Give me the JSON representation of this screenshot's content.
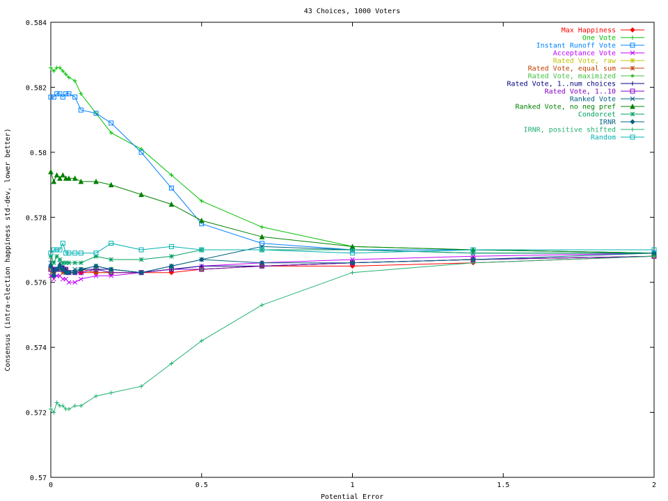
{
  "chart_data": {
    "type": "line",
    "title": "43 Choices, 1000 Voters",
    "xlabel": "Potential Error",
    "ylabel": "Consensus (intra-election happiness std-dev, lower better)",
    "xlim": [
      0,
      2
    ],
    "ylim": [
      0.57,
      0.584
    ],
    "xticks": [
      0,
      0.5,
      1,
      1.5,
      2
    ],
    "xtick_labels": [
      "0",
      "0.5",
      "1",
      "1.5",
      "2"
    ],
    "yticks": [
      0.57,
      0.572,
      0.574,
      0.576,
      0.578,
      0.58,
      0.582,
      0.584
    ],
    "ytick_labels": [
      "0.57",
      "0.572",
      "0.574",
      "0.576",
      "0.578",
      "0.58",
      "0.582",
      "0.584"
    ],
    "grid": false,
    "legend_position": "top-right",
    "x": [
      0,
      0.01,
      0.02,
      0.03,
      0.04,
      0.05,
      0.06,
      0.08,
      0.1,
      0.15,
      0.2,
      0.3,
      0.4,
      0.5,
      0.7,
      1.0,
      1.4,
      2.0
    ],
    "series": [
      {
        "name": "Max Happiness",
        "color": "#ff0000",
        "marker": "diamond",
        "values": [
          0.5764,
          0.5763,
          0.5764,
          0.5764,
          0.5764,
          0.5763,
          0.5763,
          0.5763,
          0.5763,
          0.5763,
          0.5763,
          0.5763,
          0.5763,
          0.5764,
          0.5765,
          0.5765,
          0.5766,
          0.5768
        ]
      },
      {
        "name": "One Vote",
        "color": "#00c000",
        "marker": "plus",
        "values": [
          0.5826,
          0.5825,
          0.5826,
          0.5826,
          0.5825,
          0.5824,
          0.5823,
          0.5822,
          0.5818,
          0.5812,
          0.5806,
          0.5801,
          0.5793,
          0.5785,
          0.5777,
          0.5771,
          0.577,
          0.5769
        ]
      },
      {
        "name": "Instant Runoff Vote",
        "color": "#0080ff",
        "marker": "square",
        "values": [
          0.5817,
          0.5817,
          0.5818,
          0.5818,
          0.5817,
          0.5818,
          0.5818,
          0.5817,
          0.5813,
          0.5812,
          0.5809,
          0.58,
          0.5789,
          0.5778,
          0.5772,
          0.577,
          0.577,
          0.5769
        ]
      },
      {
        "name": "Acceptance Vote",
        "color": "#c000ff",
        "marker": "x",
        "values": [
          0.5762,
          0.5761,
          0.5762,
          0.5762,
          0.5761,
          0.5761,
          0.576,
          0.576,
          0.5761,
          0.5762,
          0.5762,
          0.5763,
          0.5764,
          0.5765,
          0.5766,
          0.5767,
          0.5768,
          0.5769
        ]
      },
      {
        "name": "Rated Vote, raw",
        "color": "#c0c000",
        "marker": "star",
        "values": [
          0.5764,
          0.5764,
          0.5764,
          0.5764,
          0.5764,
          0.5764,
          0.5763,
          0.5763,
          0.5764,
          0.5764,
          0.5764,
          0.5763,
          0.5764,
          0.5764,
          0.5765,
          0.5766,
          0.5767,
          0.5768
        ]
      },
      {
        "name": "Rated Vote, equal sum",
        "color": "#c04000",
        "marker": "star",
        "values": [
          0.5764,
          0.5764,
          0.5764,
          0.5764,
          0.5763,
          0.5764,
          0.5763,
          0.5763,
          0.5764,
          0.5763,
          0.5763,
          0.5763,
          0.5764,
          0.5764,
          0.5765,
          0.5766,
          0.5767,
          0.5768
        ]
      },
      {
        "name": "Rated Vote, maximized",
        "color": "#40c040",
        "marker": "dot",
        "values": [
          0.5764,
          0.5764,
          0.5764,
          0.5764,
          0.5764,
          0.5764,
          0.5763,
          0.5763,
          0.5764,
          0.5764,
          0.5763,
          0.5763,
          0.5764,
          0.5764,
          0.5765,
          0.5766,
          0.5767,
          0.5768
        ]
      },
      {
        "name": "Rated Vote, 1..num choices",
        "color": "#000080",
        "marker": "plus",
        "values": [
          0.5765,
          0.5764,
          0.5764,
          0.5765,
          0.5765,
          0.5764,
          0.5763,
          0.5763,
          0.5764,
          0.5764,
          0.5764,
          0.5763,
          0.5764,
          0.5765,
          0.5765,
          0.5766,
          0.5767,
          0.5768
        ]
      },
      {
        "name": "Rated Vote, 1..10",
        "color": "#8000c0",
        "marker": "square",
        "values": [
          0.5764,
          0.5764,
          0.5764,
          0.5764,
          0.5764,
          0.5764,
          0.5763,
          0.5763,
          0.5763,
          0.5764,
          0.5763,
          0.5763,
          0.5764,
          0.5764,
          0.5765,
          0.5766,
          0.5767,
          0.5768
        ]
      },
      {
        "name": "Ranked Vote",
        "color": "#006080",
        "marker": "x",
        "values": [
          0.5766,
          0.5763,
          0.5764,
          0.5766,
          0.5764,
          0.5763,
          0.5763,
          0.5764,
          0.5764,
          0.5765,
          0.5764,
          0.5763,
          0.5765,
          0.5767,
          0.5771,
          0.577,
          0.5769,
          0.5769
        ]
      },
      {
        "name": "Ranked Vote, no neg pref",
        "color": "#008000",
        "marker": "triangle",
        "values": [
          0.5794,
          0.5791,
          0.5793,
          0.5792,
          0.5793,
          0.5792,
          0.5792,
          0.5792,
          0.5791,
          0.5791,
          0.579,
          0.5787,
          0.5784,
          0.5779,
          0.5774,
          0.5771,
          0.577,
          0.5769
        ]
      },
      {
        "name": "Condorcet",
        "color": "#00a060",
        "marker": "star",
        "values": [
          0.5768,
          0.5766,
          0.5768,
          0.5767,
          0.5766,
          0.5766,
          0.5766,
          0.5766,
          0.5766,
          0.5768,
          0.5767,
          0.5767,
          0.5768,
          0.577,
          0.577,
          0.577,
          0.5769,
          0.5769
        ]
      },
      {
        "name": "IRNR",
        "color": "#006080",
        "marker": "diamond",
        "values": [
          0.5765,
          0.5762,
          0.5764,
          0.5765,
          0.5764,
          0.5763,
          0.5763,
          0.5763,
          0.5764,
          0.5765,
          0.5764,
          0.5763,
          0.5765,
          0.5767,
          0.5766,
          0.5766,
          0.5767,
          0.5769
        ]
      },
      {
        "name": "IRNR, positive shifted",
        "color": "#20b070",
        "marker": "plus",
        "values": [
          0.5721,
          0.572,
          0.5723,
          0.5722,
          0.5722,
          0.5721,
          0.5721,
          0.5722,
          0.5722,
          0.5725,
          0.5726,
          0.5728,
          0.5735,
          0.5742,
          0.5753,
          0.5763,
          0.5766,
          0.5768
        ]
      },
      {
        "name": "Random",
        "color": "#00b0b0",
        "marker": "square",
        "values": [
          0.5769,
          0.577,
          0.577,
          0.577,
          0.5772,
          0.5769,
          0.5769,
          0.5769,
          0.5769,
          0.5769,
          0.5772,
          0.577,
          0.5771,
          0.577,
          0.577,
          0.5769,
          0.577,
          0.577
        ]
      }
    ]
  }
}
